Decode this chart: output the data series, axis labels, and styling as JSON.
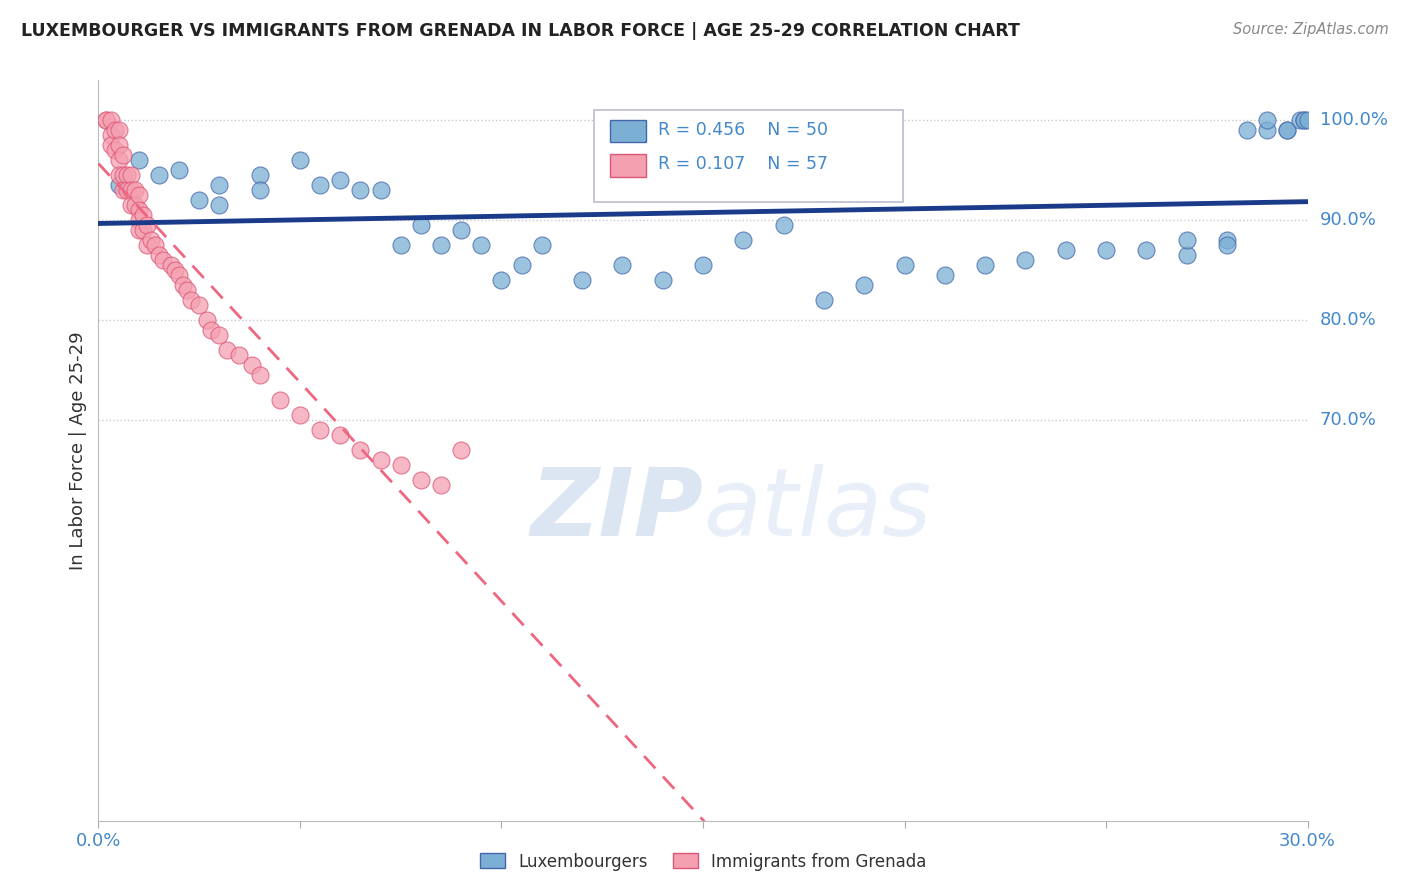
{
  "title": "LUXEMBOURGER VS IMMIGRANTS FROM GRENADA IN LABOR FORCE | AGE 25-29 CORRELATION CHART",
  "source": "Source: ZipAtlas.com",
  "ylabel": "In Labor Force | Age 25-29",
  "xlim": [
    0.0,
    0.3
  ],
  "ylim": [
    0.3,
    1.04
  ],
  "xtick_positions": [
    0.0,
    0.05,
    0.1,
    0.15,
    0.2,
    0.25,
    0.3
  ],
  "xticklabels": [
    "0.0%",
    "",
    "",
    "",
    "",
    "",
    "30.0%"
  ],
  "ytick_positions": [
    1.0,
    0.9,
    0.8,
    0.7
  ],
  "ytick_labels": [
    "100.0%",
    "90.0%",
    "80.0%",
    "70.0%"
  ],
  "blue_R": 0.456,
  "blue_N": 50,
  "pink_R": 0.107,
  "pink_N": 57,
  "blue_color": "#7BAFD4",
  "pink_color": "#F4A0B0",
  "blue_edge_color": "#4466AA",
  "pink_edge_color": "#DD5577",
  "blue_line_color": "#1A3B8A",
  "pink_line_color": "#EE6680",
  "grid_color": "#BBBBCC",
  "title_color": "#222222",
  "axis_label_color": "#4488CC",
  "watermark_color": "#C0D0E8",
  "blue_x": [
    0.005,
    0.01,
    0.015,
    0.02,
    0.025,
    0.03,
    0.03,
    0.04,
    0.04,
    0.05,
    0.055,
    0.06,
    0.065,
    0.07,
    0.075,
    0.08,
    0.085,
    0.09,
    0.095,
    0.1,
    0.105,
    0.11,
    0.12,
    0.13,
    0.14,
    0.15,
    0.16,
    0.17,
    0.18,
    0.19,
    0.2,
    0.21,
    0.22,
    0.23,
    0.24,
    0.25,
    0.26,
    0.27,
    0.27,
    0.28,
    0.28,
    0.285,
    0.29,
    0.29,
    0.295,
    0.295,
    0.298,
    0.299,
    0.299,
    0.3
  ],
  "blue_y": [
    0.935,
    0.96,
    0.945,
    0.95,
    0.92,
    0.935,
    0.915,
    0.945,
    0.93,
    0.96,
    0.935,
    0.94,
    0.93,
    0.93,
    0.875,
    0.895,
    0.875,
    0.89,
    0.875,
    0.84,
    0.855,
    0.875,
    0.84,
    0.855,
    0.84,
    0.855,
    0.88,
    0.895,
    0.82,
    0.835,
    0.855,
    0.845,
    0.855,
    0.86,
    0.87,
    0.87,
    0.87,
    0.865,
    0.88,
    0.88,
    0.875,
    0.99,
    0.99,
    1.0,
    0.99,
    0.99,
    1.0,
    1.0,
    1.0,
    1.0
  ],
  "pink_x": [
    0.002,
    0.002,
    0.003,
    0.003,
    0.003,
    0.004,
    0.004,
    0.005,
    0.005,
    0.005,
    0.005,
    0.006,
    0.006,
    0.006,
    0.007,
    0.007,
    0.008,
    0.008,
    0.008,
    0.009,
    0.009,
    0.01,
    0.01,
    0.01,
    0.01,
    0.011,
    0.011,
    0.012,
    0.012,
    0.013,
    0.014,
    0.015,
    0.016,
    0.018,
    0.019,
    0.02,
    0.021,
    0.022,
    0.023,
    0.025,
    0.027,
    0.028,
    0.03,
    0.032,
    0.035,
    0.038,
    0.04,
    0.045,
    0.05,
    0.055,
    0.06,
    0.065,
    0.07,
    0.075,
    0.08,
    0.085,
    0.09
  ],
  "pink_y": [
    1.0,
    1.0,
    1.0,
    0.985,
    0.975,
    0.99,
    0.97,
    0.99,
    0.975,
    0.96,
    0.945,
    0.965,
    0.945,
    0.93,
    0.945,
    0.93,
    0.945,
    0.93,
    0.915,
    0.93,
    0.915,
    0.925,
    0.91,
    0.9,
    0.89,
    0.905,
    0.89,
    0.895,
    0.875,
    0.88,
    0.875,
    0.865,
    0.86,
    0.855,
    0.85,
    0.845,
    0.835,
    0.83,
    0.82,
    0.815,
    0.8,
    0.79,
    0.785,
    0.77,
    0.765,
    0.755,
    0.745,
    0.72,
    0.705,
    0.69,
    0.685,
    0.67,
    0.66,
    0.655,
    0.64,
    0.635,
    0.67
  ]
}
